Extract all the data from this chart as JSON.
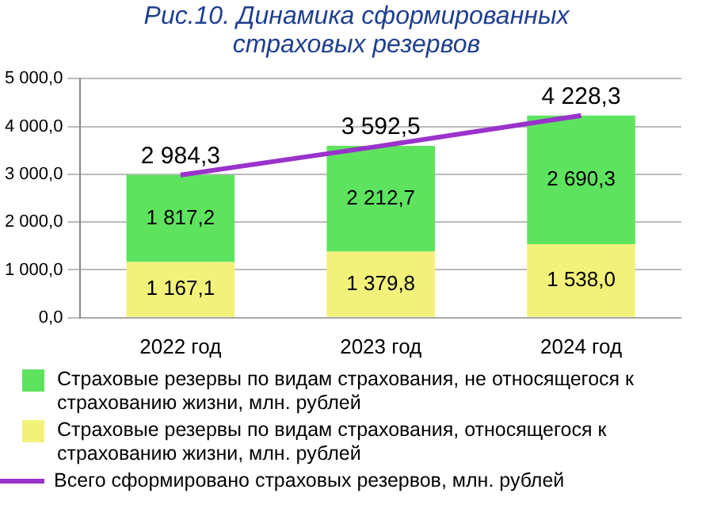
{
  "chart_data": {
    "type": "bar",
    "title": "Рис.10. Динамика сформированных страховых резервов",
    "categories": [
      "2022 год",
      "2023 год",
      "2024 год"
    ],
    "stacked": true,
    "series": [
      {
        "name": "Страховые резервы по видам страхования, относящегося к страхованию жизни, млн. рублей",
        "color": "#f2f27a",
        "values": [
          1167.1,
          1379.8,
          1538.0
        ],
        "value_labels": [
          "1 167,1",
          "1 379,8",
          "1 538,0"
        ]
      },
      {
        "name": "Страховые резервы по видам страхования, не относящегося к страхованию жизни, млн. рублей",
        "color": "#5ee35e",
        "values": [
          1817.2,
          2212.7,
          2690.3
        ],
        "value_labels": [
          "1 817,2",
          "2 212,7",
          "2 690,3"
        ]
      },
      {
        "name": "Всего сформировано страховых резервов, млн. рублей",
        "type": "line",
        "color": "#9933cc",
        "values": [
          2984.3,
          3592.5,
          4228.3
        ],
        "value_labels": [
          "2 984,3",
          "3 592,5",
          "4 228,3"
        ]
      }
    ],
    "ylim": [
      0,
      5000
    ],
    "yticks": [
      {
        "value": 0,
        "label": "0,0"
      },
      {
        "value": 1000,
        "label": "1 000,0"
      },
      {
        "value": 2000,
        "label": "2 000,0"
      },
      {
        "value": 3000,
        "label": "3 000,0"
      },
      {
        "value": 4000,
        "label": "4 000,0"
      },
      {
        "value": 5000,
        "label": "5 000,0"
      }
    ],
    "grid": "y",
    "legend": "bottom",
    "marker": "none"
  }
}
